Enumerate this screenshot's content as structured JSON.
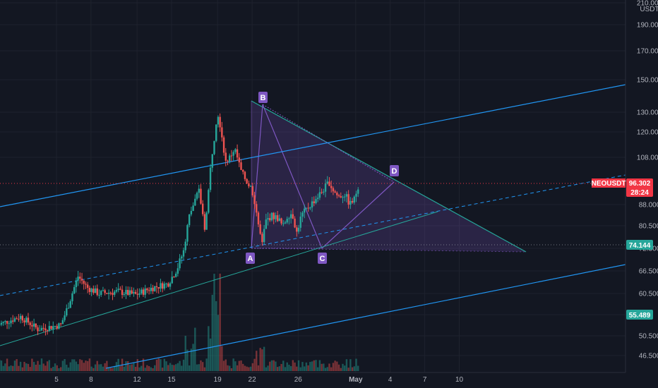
{
  "chart_data": {
    "type": "candlestick",
    "symbol": "NEOUSDT",
    "currency": "USDT",
    "price_axis": {
      "ticks": [
        46.5,
        50.5,
        55.489,
        60.5,
        66.5,
        72.5,
        80.5,
        88,
        108,
        120,
        130,
        150,
        170,
        190,
        210
      ],
      "tick_labels": [
        "46.500",
        "50.500",
        "",
        "60.500",
        "66.500",
        "72.500",
        "80.500",
        "88.000",
        "108.000",
        "120.000",
        "130.000",
        "150.000",
        "170.000",
        "190.000",
        "210.000"
      ],
      "scale": "log"
    },
    "time_axis": {
      "labels": [
        "5",
        "8",
        "12",
        "15",
        "19",
        "22",
        "26",
        "May",
        "4",
        "7",
        "10"
      ]
    },
    "last_price": {
      "label": "NEOUSDT",
      "value": "96.302",
      "countdown": "28:24",
      "color": "#f23645"
    },
    "line_tags": [
      {
        "value": "74.144",
        "color": "#26a69a"
      },
      {
        "value": "55.489",
        "color": "#26a69a"
      }
    ],
    "pattern": {
      "name": "ABCD",
      "points": [
        {
          "label": "A",
          "price": 73.5
        },
        {
          "label": "B",
          "price": 134.5
        },
        {
          "label": "C",
          "price": 73.8
        },
        {
          "label": "D",
          "price": 98.5
        }
      ],
      "color": "#7e57c2"
    },
    "colors": {
      "up": "#26a69a",
      "down": "#ef5350",
      "channel": "#2196f3",
      "trend": "#26a69a",
      "grid": "#1e222d"
    }
  }
}
